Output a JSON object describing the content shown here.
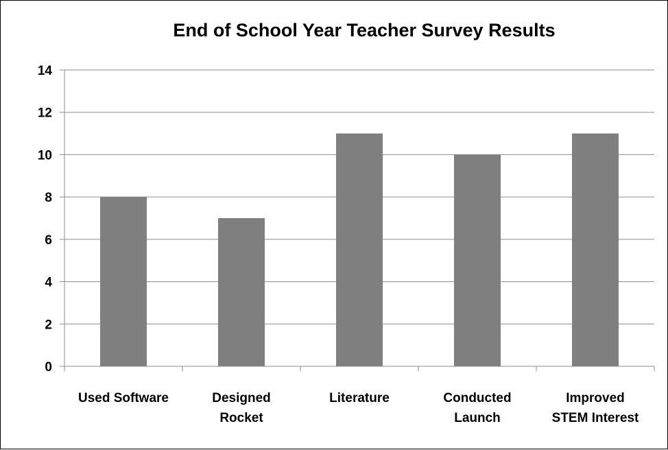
{
  "chart_data": {
    "type": "bar",
    "title": "End of School Year Teacher Survey Results",
    "categories": [
      [
        "Used Software"
      ],
      [
        "Designed",
        "Rocket"
      ],
      [
        "Literature"
      ],
      [
        "Conducted",
        "Launch"
      ],
      [
        "Improved",
        "STEM Interest"
      ]
    ],
    "values": [
      8,
      7,
      11,
      10,
      11
    ],
    "ylim": [
      0,
      14
    ],
    "yticks": [
      0,
      2,
      4,
      6,
      8,
      10,
      12,
      14
    ],
    "grid": true,
    "legend": "none",
    "colors": {
      "bar": "#7f7f7f",
      "grid": "#8c8c8c",
      "axis": "#8c8c8c",
      "text": "#000000"
    }
  }
}
